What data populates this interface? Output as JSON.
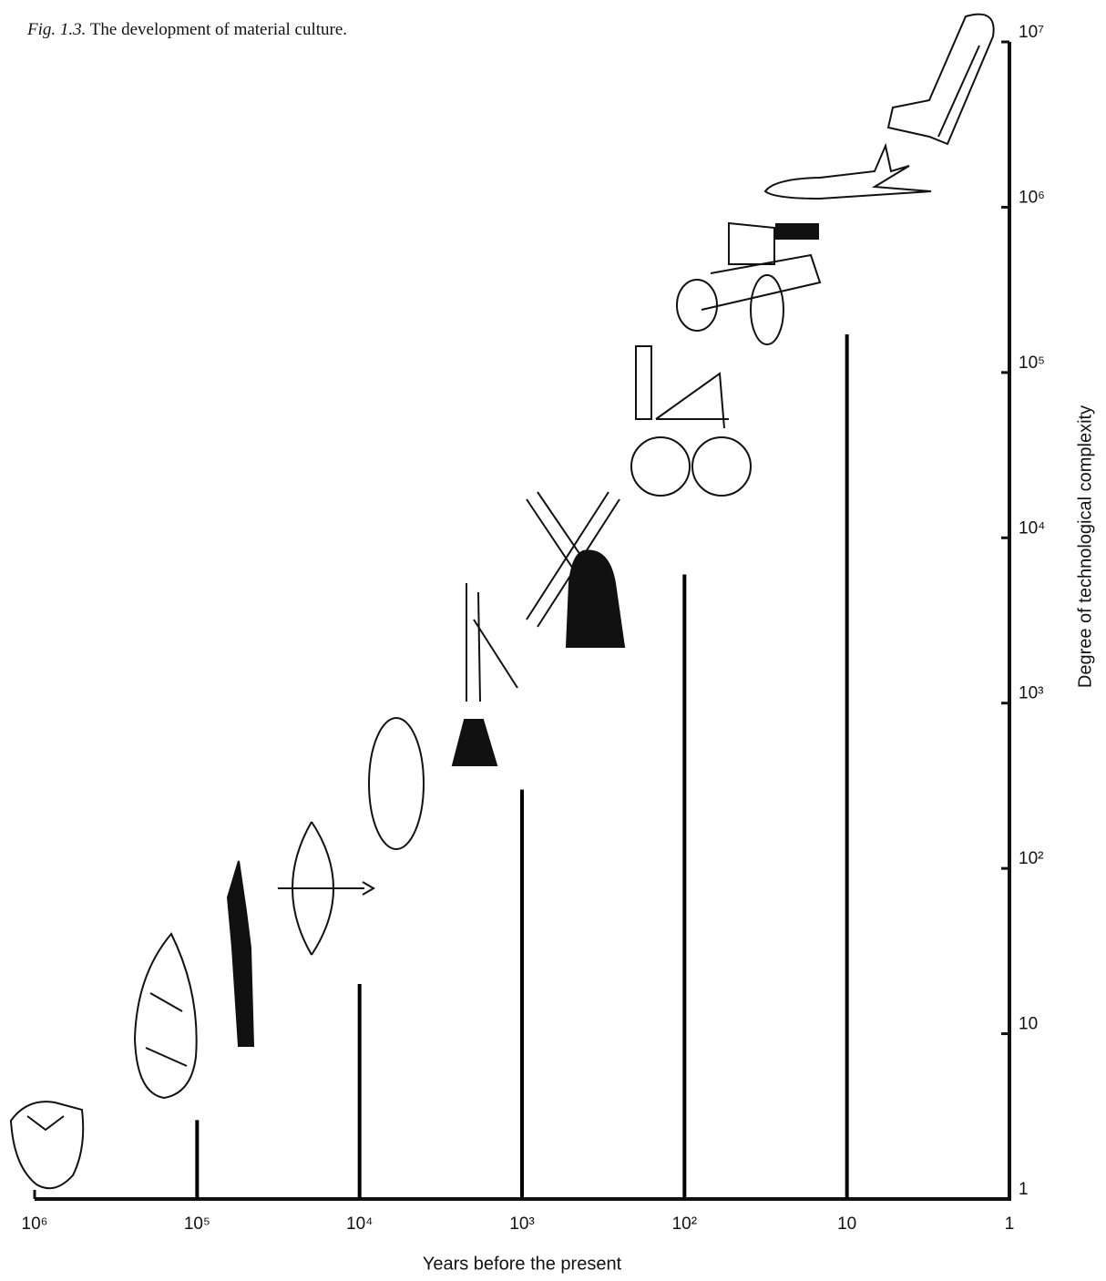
{
  "chart_data": {
    "type": "bar",
    "figure_label": "Fig. 1.3.",
    "title": "The development of material culture.",
    "x_label": "Years before the present",
    "y_label": "Degree of technological complexity",
    "x": [
      100000,
      10000,
      1000,
      100,
      10
    ],
    "values": [
      3,
      20,
      300,
      6000,
      170000
    ],
    "color": "#000000",
    "xlim": [
      1000000,
      1
    ],
    "x_log": true,
    "xticks": [
      {
        "value": 1000000,
        "label": "10⁶"
      },
      {
        "value": 100000,
        "label": "10⁵"
      },
      {
        "value": 10000,
        "label": "10⁴"
      },
      {
        "value": 1000,
        "label": "10³"
      },
      {
        "value": 100,
        "label": "10²"
      },
      10,
      1
    ],
    "ylim": [
      1,
      10000000
    ],
    "y_log": true,
    "yticks": [
      1,
      10,
      {
        "value": 100,
        "label": "10²"
      },
      {
        "value": 1000,
        "label": "10³"
      },
      {
        "value": 10000,
        "label": "10⁴"
      },
      {
        "value": 100000,
        "label": "10⁵"
      },
      {
        "value": 1000000,
        "label": "10⁶"
      },
      {
        "value": 10000000,
        "label": "10⁷"
      }
    ],
    "grid": false
  }
}
